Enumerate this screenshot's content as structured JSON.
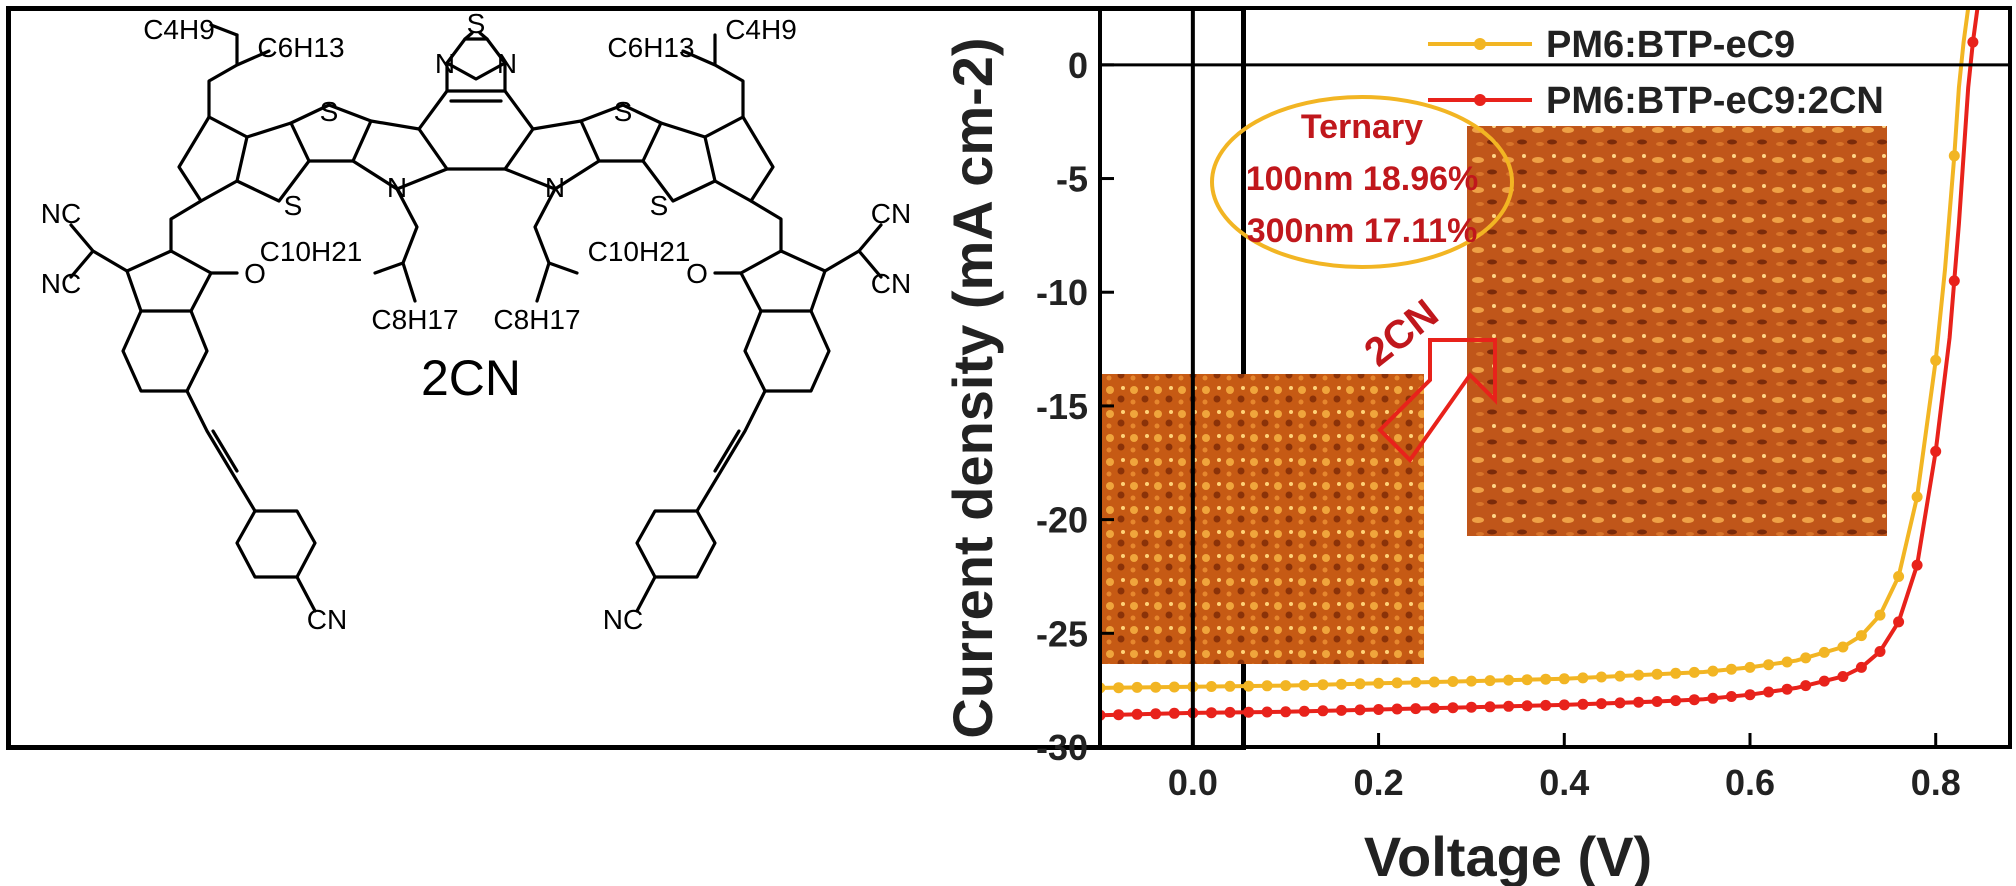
{
  "molecule": {
    "name": "2CN",
    "labels": {
      "s_top": "S",
      "n_top_left": "N",
      "n_top_right": "N",
      "s_left_upper": "S",
      "s_right_upper": "S",
      "s_left_lower": "S",
      "s_right_lower": "S",
      "n_core_left": "N",
      "n_core_right": "N",
      "o_left": "O",
      "o_right": "O",
      "nc_left_top": "NC",
      "nc_left_bottom": "NC",
      "cn_right_top": "CN",
      "cn_right_bottom": "CN",
      "cn_bottom_right": "CN",
      "nc_bottom_left": "NC",
      "c4h9_left": "C4H9",
      "c6h13_left": "C6H13",
      "c6h13_right": "C6H13",
      "c4h9_right": "C4H9",
      "c10h21_left": "C10H21",
      "c10h21_right": "C10H21",
      "c8h17_left": "C8H17",
      "c8h17_right": "C8H17"
    }
  },
  "chart_data": {
    "type": "line",
    "title": "",
    "xlabel": "Voltage (V)",
    "ylabel": "Current density (mA cm-2)",
    "xlim": [
      -0.1,
      0.88
    ],
    "ylim": [
      -30,
      2.5
    ],
    "xticks": [
      "0.0",
      "0.2",
      "0.4",
      "0.6",
      "0.8"
    ],
    "xtick_values": [
      0.0,
      0.2,
      0.4,
      0.6,
      0.8
    ],
    "yticks": [
      "0",
      "-5",
      "-10",
      "-15",
      "-20",
      "-25",
      "-30"
    ],
    "ytick_values": [
      0,
      -5,
      -10,
      -15,
      -20,
      -25,
      -30
    ],
    "legend_position": "top-right",
    "series": [
      {
        "name": "PM6:BTP-eC9",
        "color": "#f2b523",
        "x": [
          -0.1,
          0.0,
          0.1,
          0.2,
          0.3,
          0.4,
          0.5,
          0.55,
          0.6,
          0.65,
          0.7,
          0.72,
          0.74,
          0.76,
          0.78,
          0.8,
          0.81,
          0.82,
          0.825,
          0.83,
          0.835,
          0.838
        ],
        "y": [
          -27.4,
          -27.35,
          -27.3,
          -27.2,
          -27.1,
          -27.0,
          -26.8,
          -26.7,
          -26.5,
          -26.2,
          -25.6,
          -25.1,
          -24.2,
          -22.5,
          -19.0,
          -13.0,
          -9.0,
          -4.0,
          -1.0,
          1.0,
          2.5,
          3.5
        ]
      },
      {
        "name": "PM6:BTP-eC9:2CN",
        "color": "#e8221b",
        "x": [
          -0.1,
          0.0,
          0.1,
          0.2,
          0.3,
          0.4,
          0.5,
          0.55,
          0.6,
          0.65,
          0.7,
          0.72,
          0.74,
          0.76,
          0.78,
          0.8,
          0.815,
          0.825,
          0.835,
          0.84,
          0.845,
          0.85
        ],
        "y": [
          -28.6,
          -28.5,
          -28.45,
          -28.35,
          -28.25,
          -28.15,
          -28.0,
          -27.9,
          -27.7,
          -27.4,
          -26.9,
          -26.5,
          -25.8,
          -24.5,
          -22.0,
          -17.0,
          -12.0,
          -7.0,
          -1.0,
          1.0,
          2.5,
          3.5
        ]
      }
    ],
    "annotations": {
      "ternary_title": "Ternary",
      "ternary_line1": "100nm 18.96%",
      "ternary_line2": "300nm 17.11%",
      "arrow_label": "2CN"
    }
  },
  "colors": {
    "frame": "#000000",
    "ellipse": "#f2b523",
    "annotation_text": "#c0171c",
    "arrow": "#e8221b"
  }
}
